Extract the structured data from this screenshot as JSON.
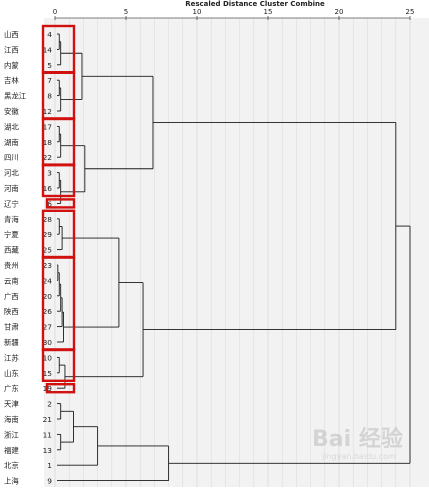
{
  "chart_data": {
    "type": "dendrogram",
    "title": "Rescaled Distance Cluster Combine",
    "x_axis": {
      "ticks": [
        0,
        5,
        10,
        15,
        20,
        25
      ],
      "xlim": [
        0,
        25
      ]
    },
    "grid": true,
    "leaves": [
      {
        "name": "山西",
        "id": "4"
      },
      {
        "name": "江西",
        "id": "14"
      },
      {
        "name": "内蒙",
        "id": "5"
      },
      {
        "name": "吉林",
        "id": "7"
      },
      {
        "name": "黑龙江",
        "id": "8"
      },
      {
        "name": "安徽",
        "id": "12"
      },
      {
        "name": "湖北",
        "id": "17"
      },
      {
        "name": "湖南",
        "id": "18"
      },
      {
        "name": "四川",
        "id": "22"
      },
      {
        "name": "河北",
        "id": "3"
      },
      {
        "name": "河南",
        "id": "16"
      },
      {
        "name": "辽宁",
        "id": "6"
      },
      {
        "name": "青海",
        "id": "28"
      },
      {
        "name": "宁夏",
        "id": "29"
      },
      {
        "name": "西藏",
        "id": "25"
      },
      {
        "name": "贵州",
        "id": "23"
      },
      {
        "name": "云南",
        "id": "24"
      },
      {
        "name": "广西",
        "id": "20"
      },
      {
        "name": "陕西",
        "id": "26"
      },
      {
        "name": "甘肃",
        "id": "27"
      },
      {
        "name": "新疆",
        "id": "30"
      },
      {
        "name": "江苏",
        "id": "10"
      },
      {
        "name": "山东",
        "id": "15"
      },
      {
        "name": "广东",
        "id": "19"
      },
      {
        "name": "天津",
        "id": "2"
      },
      {
        "name": "海南",
        "id": "21"
      },
      {
        "name": "浙江",
        "id": "11"
      },
      {
        "name": "福建",
        "id": "13"
      },
      {
        "name": "北京",
        "id": "1"
      },
      {
        "name": "上海",
        "id": "9"
      }
    ],
    "merges": [
      {
        "a": "L0",
        "b": "L1",
        "h": 0.3
      },
      {
        "a": "N0",
        "b": "L2",
        "h": 0.4
      },
      {
        "a": "L3",
        "b": "L4",
        "h": 0.3
      },
      {
        "a": "N2",
        "b": "L5",
        "h": 0.4
      },
      {
        "a": "N1",
        "b": "N3",
        "h": 1.9
      },
      {
        "a": "L6",
        "b": "L7",
        "h": 0.3
      },
      {
        "a": "N5",
        "b": "L8",
        "h": 0.4
      },
      {
        "a": "L9",
        "b": "L10",
        "h": 0.3
      },
      {
        "a": "N7",
        "b": "L11",
        "h": 0.4
      },
      {
        "a": "N6",
        "b": "N8",
        "h": 2.1
      },
      {
        "a": "N4",
        "b": "N9",
        "h": 6.9
      },
      {
        "a": "L12",
        "b": "L13",
        "h": 0.3
      },
      {
        "a": "N11",
        "b": "L14",
        "h": 0.5
      },
      {
        "a": "L15",
        "b": "L16",
        "h": 0.2
      },
      {
        "a": "N13",
        "b": "L17",
        "h": 0.3
      },
      {
        "a": "N14",
        "b": "L18",
        "h": 0.4
      },
      {
        "a": "N15",
        "b": "L19",
        "h": 0.5
      },
      {
        "a": "N16",
        "b": "L20",
        "h": 0.6
      },
      {
        "a": "N12",
        "b": "N17",
        "h": 4.5
      },
      {
        "a": "L21",
        "b": "L22",
        "h": 0.3
      },
      {
        "a": "N19",
        "b": "L23",
        "h": 0.7
      },
      {
        "a": "N18",
        "b": "N20",
        "h": 6.2
      },
      {
        "a": "N10",
        "b": "N21",
        "h": 24.0
      },
      {
        "a": "L24",
        "b": "L25",
        "h": 0.4
      },
      {
        "a": "L26",
        "b": "L27",
        "h": 0.4
      },
      {
        "a": "N23",
        "b": "N24",
        "h": 1.3
      },
      {
        "a": "N25",
        "b": "L28",
        "h": 3.0
      },
      {
        "a": "N26",
        "b": "L29",
        "h": 8.0
      },
      {
        "a": "N22",
        "b": "N27",
        "h": 25.0
      }
    ],
    "annotations": [
      {
        "shape": "rect",
        "leaves": [
          0,
          2
        ],
        "color": "#d11010"
      },
      {
        "shape": "rect",
        "leaves": [
          3,
          5
        ],
        "color": "#d11010"
      },
      {
        "shape": "rect",
        "leaves": [
          6,
          8
        ],
        "color": "#d11010"
      },
      {
        "shape": "rect",
        "leaves": [
          9,
          10
        ],
        "color": "#d11010"
      },
      {
        "shape": "rect",
        "leaves": [
          11,
          11
        ],
        "color": "#d11010"
      },
      {
        "shape": "rect",
        "leaves": [
          12,
          14
        ],
        "color": "#d11010"
      },
      {
        "shape": "rect",
        "leaves": [
          15,
          20
        ],
        "color": "#d11010"
      },
      {
        "shape": "rect",
        "leaves": [
          21,
          22
        ],
        "color": "#d11010"
      },
      {
        "shape": "rect",
        "leaves": [
          23,
          23
        ],
        "color": "#d11010"
      }
    ],
    "colors": {
      "line": "#1a1a1a",
      "grid": "#cfcfcf",
      "plot_bg": "#f2f2f2",
      "highlight": "#d11010"
    }
  },
  "watermark": {
    "text": "Bai 经验",
    "sub": "jingyan.baidu.com"
  }
}
